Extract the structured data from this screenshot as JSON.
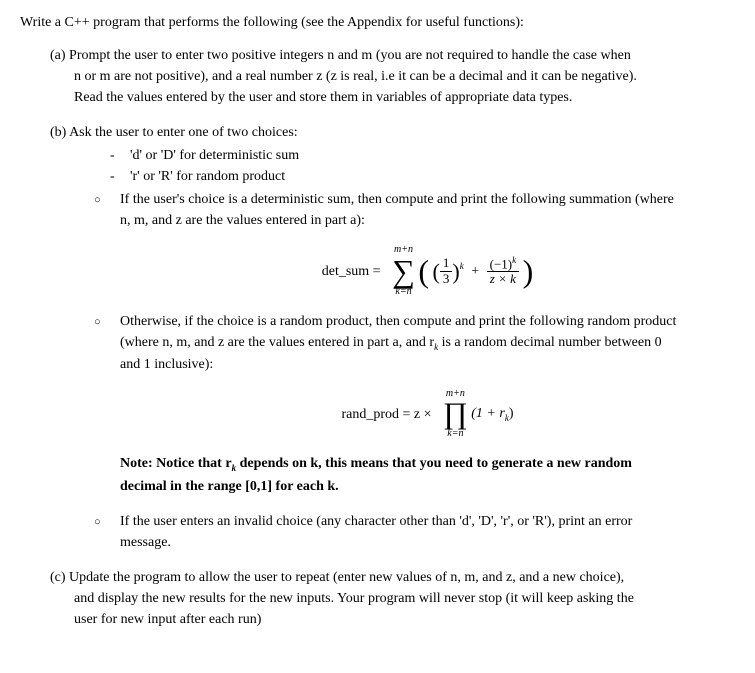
{
  "intro": "Write a C++ program that performs the following (see the Appendix for useful functions):",
  "partA": {
    "label": "(a) ",
    "line1": "Prompt the user to enter two positive integers n and m (you are not required to handle the case when",
    "line2": "n or m are not positive), and a real number z (z is real, i.e it can be a decimal and it can be negative).",
    "line3": "Read the values entered by the user and store them in variables of appropriate data types."
  },
  "partB": {
    "label": "(b) ",
    "intro": "Ask the user to enter one of two choices:",
    "bullet1": "'d' or 'D' for deterministic sum",
    "bullet2": "'r' or 'R' for random product",
    "sub1": {
      "line1": "If the user's choice is a deterministic sum, then compute and print the following summation (where",
      "line2": "n, m, and z are the values entered in part a):"
    },
    "formula1": {
      "label": "det_sum = ",
      "top": "m+n",
      "bottom": "k=n",
      "frac1_num": "1",
      "frac1_den": "3",
      "exp1": "k",
      "frac2_num": "(−1)",
      "frac2_num_exp": "k",
      "frac2_den": "z × k"
    },
    "sub2": {
      "line1": "Otherwise, if the choice is a random product, then compute and print the following random product",
      "line2_a": "(where n, m, and z are the values entered in part a, and r",
      "line2_sub": "k",
      "line2_b": " is a random decimal number between 0",
      "line3": "and 1 inclusive):"
    },
    "formula2": {
      "label": "rand_prod = z × ",
      "top": "m+n",
      "bottom": "k=n",
      "term_a": "(1 + r",
      "term_sub": "k",
      "term_b": ")"
    },
    "note": {
      "line1_a": "Note: Notice that r",
      "line1_sub": "k",
      "line1_b": " depends on k, this means that you need to generate a new random",
      "line2": "decimal in the range [0,1] for each k."
    },
    "sub3": {
      "line1": "If the user enters an invalid choice (any character other than 'd', 'D', 'r', or 'R'), print an error",
      "line2": "message."
    }
  },
  "partC": {
    "label": "(c) ",
    "line1": "Update the program to allow the user to repeat (enter new values of n, m, and z, and a new choice),",
    "line2": "and display the new results for the new inputs. Your program will never stop (it will keep asking the",
    "line3": "user for new input after each run)"
  }
}
